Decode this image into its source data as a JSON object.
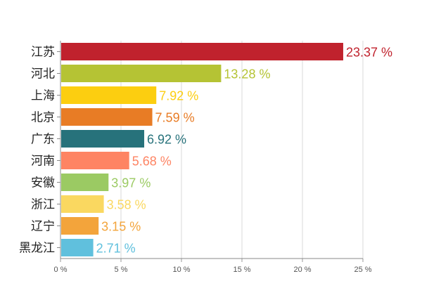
{
  "chart_data": {
    "type": "bar",
    "orientation": "horizontal",
    "categories": [
      "江苏",
      "河北",
      "上海",
      "北京",
      "广东",
      "河南",
      "安徽",
      "浙江",
      "辽宁",
      "黑龙江"
    ],
    "values": [
      23.37,
      13.28,
      7.92,
      7.59,
      6.92,
      5.68,
      3.97,
      3.58,
      3.15,
      2.71
    ],
    "value_labels": [
      "23.37 %",
      "13.28 %",
      "7.92 %",
      "7.59 %",
      "6.92 %",
      "5.68 %",
      "3.97 %",
      "3.58 %",
      "3.15 %",
      "2.71 %"
    ],
    "colors": [
      "#c0222d",
      "#b5c334",
      "#fcce10",
      "#e87c25",
      "#27727b",
      "#fe8463",
      "#9bca63",
      "#fad860",
      "#f3a43b",
      "#60c0dd"
    ],
    "xlim": [
      0,
      25
    ],
    "xticks": [
      0,
      5,
      10,
      15,
      20,
      25
    ],
    "xtick_labels": [
      "0 %",
      "5 %",
      "10 %",
      "15 %",
      "20 %",
      "25 %"
    ],
    "grid": true,
    "title": "",
    "xlabel": "",
    "ylabel": ""
  }
}
